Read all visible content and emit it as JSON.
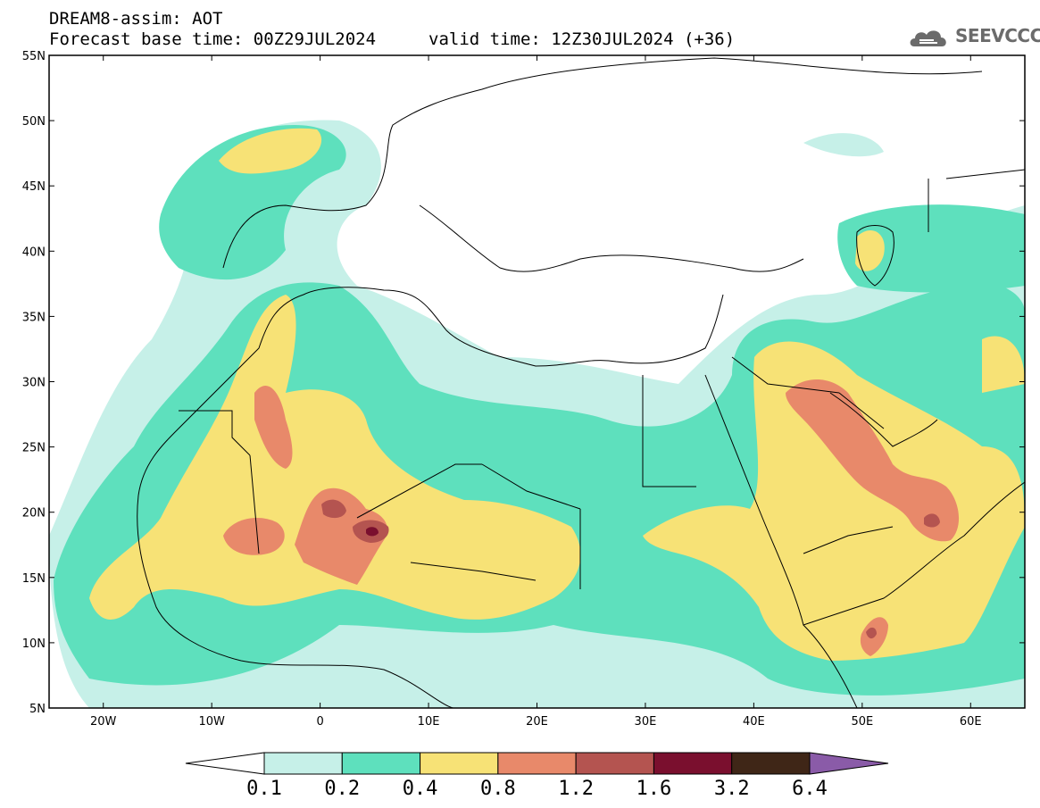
{
  "header": {
    "title": "DREAM8-assim: AOT",
    "base_time": "Forecast base time: 00Z29JUL2024",
    "valid_time": "valid time: 12Z30JUL2024 (+36)"
  },
  "logo": {
    "text": "SEEVCCC",
    "icon": "cloud-icon",
    "color": "#6b6b6b"
  },
  "map": {
    "lon_range": [
      -25,
      65
    ],
    "lat_range": [
      5,
      55
    ],
    "lat_ticks": [
      "55N",
      "50N",
      "45N",
      "40N",
      "35N",
      "30N",
      "25N",
      "20N",
      "15N",
      "10N",
      "5N"
    ],
    "lon_ticks": [
      "20W",
      "10W",
      "0",
      "10E",
      "20E",
      "30E",
      "40E",
      "50E",
      "60E"
    ]
  },
  "legend": {
    "levels": [
      "0.1",
      "0.2",
      "0.4",
      "0.8",
      "1.2",
      "1.6",
      "3.2",
      "6.4"
    ],
    "colors": [
      "#ffffff",
      "#c6f0e8",
      "#5ee0bd",
      "#f7e276",
      "#e8896a",
      "#b45450",
      "#7a0f2e",
      "#3f2617",
      "#8a5ba8"
    ]
  }
}
